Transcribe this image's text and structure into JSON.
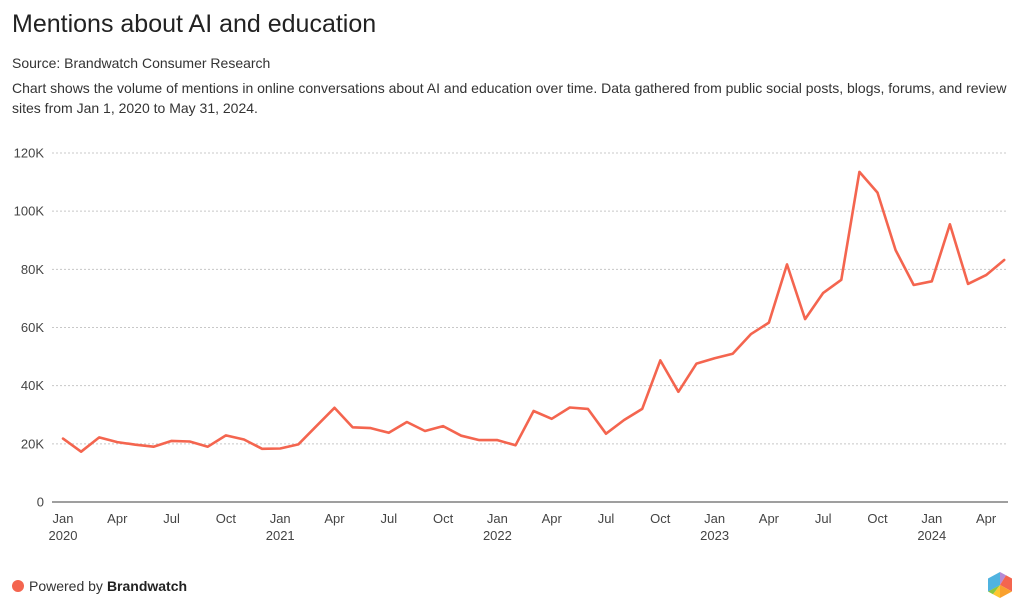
{
  "header": {
    "title": "Mentions about AI and education",
    "source": "Source: Brandwatch Consumer Research",
    "description": "Chart shows the volume of mentions in online conversations about AI and education over time. Data gathered from public social posts, blogs, forums, and review sites from Jan 1, 2020 to May 31, 2024."
  },
  "footer": {
    "powered_by": "Powered by",
    "brand": "Brandwatch",
    "dot_color": "#F4654F",
    "logo_icon": "brandwatch-hexagon-logo"
  },
  "colors": {
    "line": "#F4654F",
    "grid": "#C8C8C8",
    "axis": "#666666"
  },
  "chart_data": {
    "type": "line",
    "title": "Mentions about AI and education",
    "xlabel": "",
    "ylabel": "",
    "ylim": [
      0,
      120000
    ],
    "yticks": [
      0,
      20000,
      40000,
      60000,
      80000,
      100000,
      120000
    ],
    "ytick_labels": [
      "0",
      "20K",
      "40K",
      "60K",
      "80K",
      "100K",
      "120K"
    ],
    "grid": true,
    "legend": "none",
    "x_start": "2020-01",
    "x_end": "2024-05",
    "xticks": [
      {
        "index": 0,
        "month": "Jan",
        "year": "2020"
      },
      {
        "index": 3,
        "month": "Apr",
        "year": ""
      },
      {
        "index": 6,
        "month": "Jul",
        "year": ""
      },
      {
        "index": 9,
        "month": "Oct",
        "year": ""
      },
      {
        "index": 12,
        "month": "Jan",
        "year": "2021"
      },
      {
        "index": 15,
        "month": "Apr",
        "year": ""
      },
      {
        "index": 18,
        "month": "Jul",
        "year": ""
      },
      {
        "index": 21,
        "month": "Oct",
        "year": ""
      },
      {
        "index": 24,
        "month": "Jan",
        "year": "2022"
      },
      {
        "index": 27,
        "month": "Apr",
        "year": ""
      },
      {
        "index": 30,
        "month": "Jul",
        "year": ""
      },
      {
        "index": 33,
        "month": "Oct",
        "year": ""
      },
      {
        "index": 36,
        "month": "Jan",
        "year": "2023"
      },
      {
        "index": 39,
        "month": "Apr",
        "year": ""
      },
      {
        "index": 42,
        "month": "Jul",
        "year": ""
      },
      {
        "index": 45,
        "month": "Oct",
        "year": ""
      },
      {
        "index": 48,
        "month": "Jan",
        "year": "2024"
      },
      {
        "index": 51,
        "month": "Apr",
        "year": ""
      }
    ],
    "x": [
      "2020-01",
      "2020-02",
      "2020-03",
      "2020-04",
      "2020-05",
      "2020-06",
      "2020-07",
      "2020-08",
      "2020-09",
      "2020-10",
      "2020-11",
      "2020-12",
      "2021-01",
      "2021-02",
      "2021-03",
      "2021-04",
      "2021-05",
      "2021-06",
      "2021-07",
      "2021-08",
      "2021-09",
      "2021-10",
      "2021-11",
      "2021-12",
      "2022-01",
      "2022-02",
      "2022-03",
      "2022-04",
      "2022-05",
      "2022-06",
      "2022-07",
      "2022-08",
      "2022-09",
      "2022-10",
      "2022-11",
      "2022-12",
      "2023-01",
      "2023-02",
      "2023-03",
      "2023-04",
      "2023-05",
      "2023-06",
      "2023-07",
      "2023-08",
      "2023-09",
      "2023-10",
      "2023-11",
      "2023-12",
      "2024-01",
      "2024-02",
      "2024-03",
      "2024-04",
      "2024-05"
    ],
    "series": [
      {
        "name": "Mentions",
        "values": [
          21800,
          17300,
          22200,
          20600,
          19700,
          19000,
          21000,
          20800,
          19000,
          22900,
          21500,
          18300,
          18400,
          19800,
          26100,
          32400,
          25700,
          25400,
          23800,
          27500,
          24400,
          26100,
          22800,
          21300,
          21300,
          19500,
          31300,
          28600,
          32500,
          32000,
          23500,
          28200,
          32000,
          48700,
          37900,
          47600,
          49400,
          51000,
          57700,
          61700,
          81700,
          62900,
          71900,
          76400,
          113500,
          106400,
          86600,
          74600,
          75900,
          95500,
          75000,
          78000,
          83200
        ]
      }
    ]
  }
}
